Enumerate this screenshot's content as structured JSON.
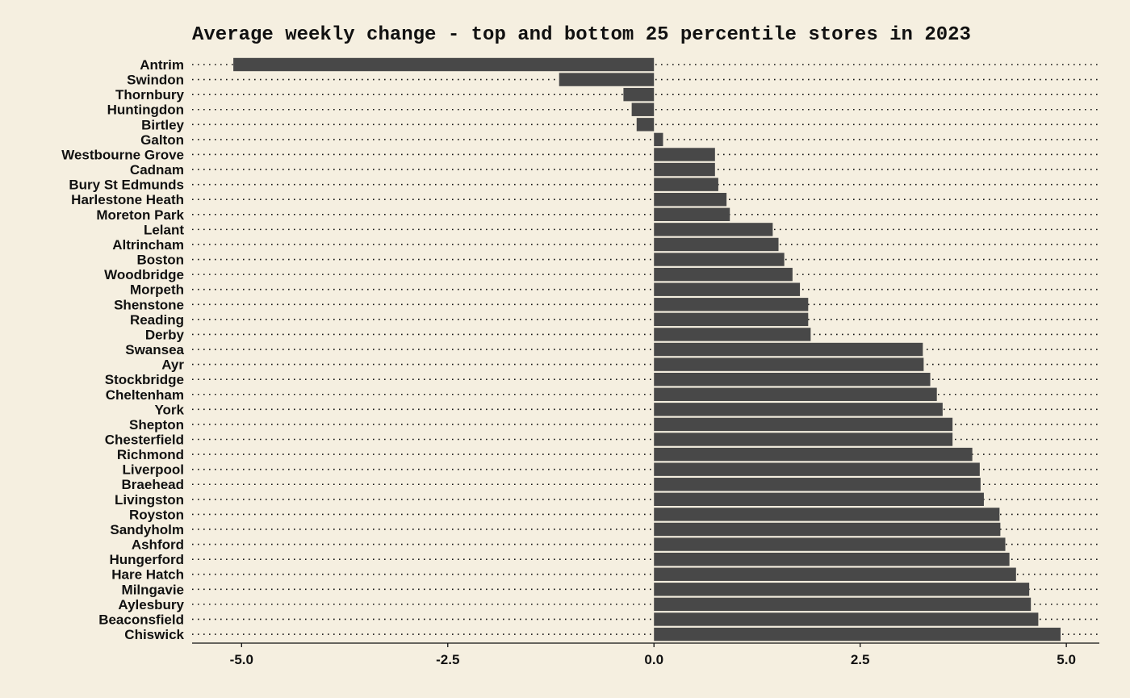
{
  "chart_data": {
    "type": "bar",
    "orientation": "horizontal",
    "title": "Average weekly change - top and bottom 25 percentile stores in 2023",
    "xlabel": "",
    "ylabel": "",
    "xlim": [
      -5.6,
      5.4
    ],
    "xticks": [
      -5.0,
      -2.5,
      0.0,
      2.5,
      5.0
    ],
    "xtick_labels": [
      "-5.0",
      "-2.5",
      "0.0",
      "2.5",
      "5.0"
    ],
    "grid": "dotted horizontal",
    "bar_color": "#484848",
    "background_color": "#f5efe0",
    "categories": [
      "Antrim",
      "Swindon",
      "Thornbury",
      "Huntingdon",
      "Birtley",
      "Galton",
      "Westbourne Grove",
      "Cadnam",
      "Bury St Edmunds",
      "Harlestone Heath",
      "Moreton Park",
      "Lelant",
      "Altrincham",
      "Boston",
      "Woodbridge",
      "Morpeth",
      "Shenstone",
      "Reading",
      "Derby",
      "Swansea",
      "Ayr",
      "Stockbridge",
      "Cheltenham",
      "York",
      "Shepton",
      "Chesterfield",
      "Richmond",
      "Liverpool",
      "Braehead",
      "Livingston",
      "Royston",
      "Sandyholm",
      "Ashford",
      "Hungerford",
      "Hare Hatch",
      "Milngavie",
      "Aylesbury",
      "Beaconsfield",
      "Chiswick"
    ],
    "values": [
      -5.1,
      -1.15,
      -0.37,
      -0.27,
      -0.21,
      0.11,
      0.74,
      0.74,
      0.78,
      0.88,
      0.92,
      1.44,
      1.51,
      1.58,
      1.68,
      1.77,
      1.87,
      1.87,
      1.9,
      3.26,
      3.27,
      3.35,
      3.43,
      3.5,
      3.62,
      3.62,
      3.86,
      3.95,
      3.96,
      4.0,
      4.19,
      4.2,
      4.26,
      4.31,
      4.39,
      4.55,
      4.57,
      4.66,
      4.93
    ]
  }
}
